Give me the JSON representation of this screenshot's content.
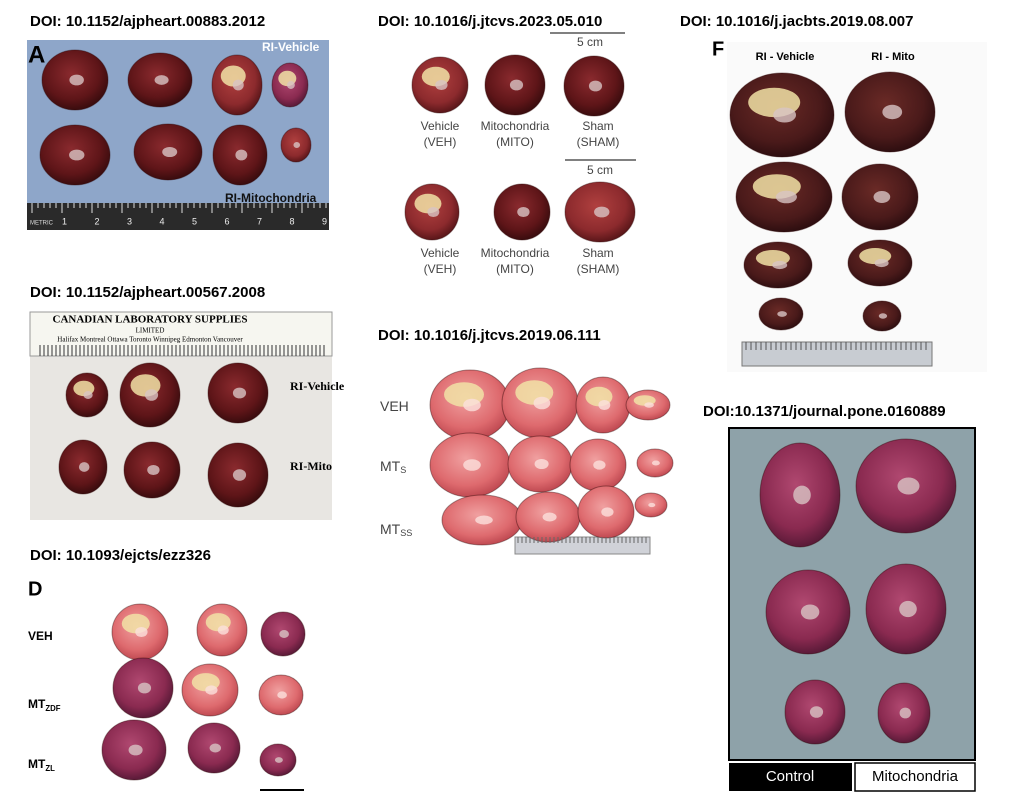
{
  "panel_a": {
    "doi": "DOI: 10.1152/ajpheart.00883.2012",
    "letter": "A",
    "label_top": "RI-Vehicle",
    "label_bottom": "RI-Mitochondria",
    "ruler_label": "METRIC",
    "ruler_numbers": [
      "1",
      "2",
      "3",
      "4",
      "5",
      "6",
      "7",
      "8",
      "9"
    ]
  },
  "panel_jtcvs_2023": {
    "doi": "DOI: 10.1016/j.jtcvs.2023.05.010",
    "scale_label_1": "5 cm",
    "scale_label_2": "5 cm",
    "row_1": [
      [
        "Vehicle",
        "(VEH)"
      ],
      [
        "Mitochondria",
        "(MITO)"
      ],
      [
        "Sham",
        "(SHAM)"
      ]
    ],
    "row_2": [
      [
        "Vehicle",
        "(VEH)"
      ],
      [
        "Mitochondria",
        "(MITO)"
      ],
      [
        "Sham",
        "(SHAM)"
      ]
    ]
  },
  "panel_f": {
    "doi": "DOI: 10.1016/j.jacbts.2019.08.007",
    "letter": "F",
    "label_left": "RI - Vehicle",
    "label_right": "RI - Mito"
  },
  "panel_ajp_2008": {
    "doi": "DOI: 10.1152/ajpheart.00567.2008",
    "ruler_title": "CANADIAN LABORATORY SUPPLIES",
    "ruler_subtitle": "LIMITED",
    "ruler_cities": "Halifax Montreal Ottawa Toronto Winnipeg Edmonton Vancouver",
    "label_top": "RI-Vehicle",
    "label_bottom": "RI-Mito"
  },
  "panel_jtcvs_2019": {
    "doi": "DOI: 10.1016/j.jtcvs.2019.06.111",
    "rows": [
      {
        "main": "VEH"
      },
      {
        "main": "MT",
        "sub": "S"
      },
      {
        "main": "MT",
        "sub": "SS"
      }
    ]
  },
  "panel_pone": {
    "doi": "DOI:10.1371/journal.pone.0160889",
    "label_left": "Control",
    "label_right": "Mitochondria"
  },
  "panel_d": {
    "doi": "DOI: 10.1093/ejcts/ezz326",
    "letter": "D",
    "rows": [
      {
        "main": "VEH"
      },
      {
        "main": "MT",
        "sub": "ZDF"
      },
      {
        "main": "MT",
        "sub": "ZL"
      }
    ]
  }
}
